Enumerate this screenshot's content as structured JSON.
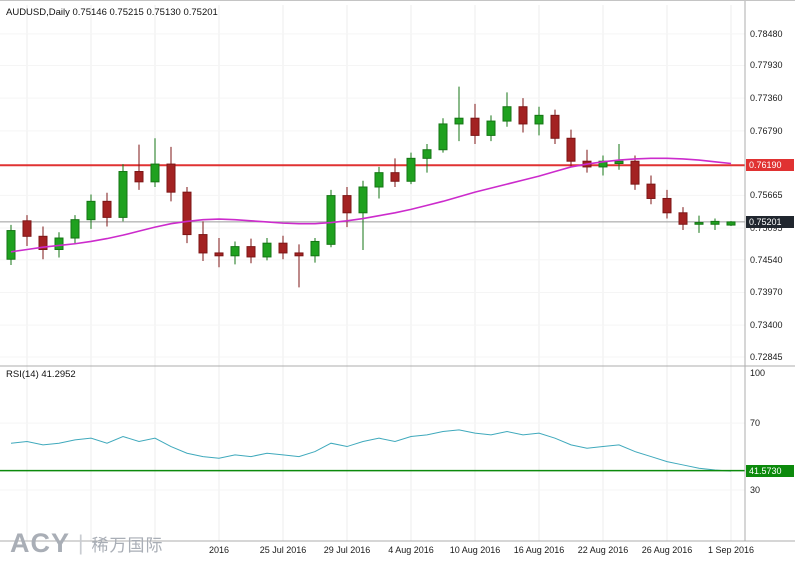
{
  "header": {
    "symbol_line": "AUDUSD,Daily 0.75146 0.75215 0.75130 0.75201"
  },
  "indicator": {
    "label": "RSI(14) 41.2952"
  },
  "logo": {
    "brand": "ACY",
    "separator": "|",
    "cjk": "稀万国际"
  },
  "price_axis": {
    "labels": [
      "0.78480",
      "0.77930",
      "0.77360",
      "0.76790",
      "0.75665",
      "0.75095",
      "0.74540",
      "0.73970",
      "0.73400",
      "0.72845"
    ],
    "red_badge": "0.76190",
    "price_badge": "0.75201",
    "rsi_badge": "41.5730",
    "rsi_labels": [
      "100",
      "70",
      "30"
    ]
  },
  "colors": {
    "bull": "#1fa11f",
    "bull_border": "#157515",
    "bear": "#a32222",
    "bear_border": "#7c1616",
    "ma": "#cc2bcc",
    "rsi": "#3fa9bc",
    "red_line": "#e03232",
    "green_line": "#0c8a0c",
    "badge_dark": "#20262e",
    "grid": "#ececec",
    "grid_h": "#f5f5f5",
    "divider": "#adadad",
    "current_price_line": "#9b9b9b"
  },
  "chart_data": [
    {
      "type": "candlestick",
      "title": "AUDUSD,Daily",
      "dates": [
        "2016-06-30",
        "2016-07-01",
        "2016-07-04",
        "2016-07-05",
        "2016-07-06",
        "2016-07-07",
        "2016-07-08",
        "2016-07-11",
        "2016-07-12",
        "2016-07-13",
        "2016-07-14",
        "2016-07-15",
        "2016-07-18",
        "2016-07-19",
        "2016-07-20",
        "2016-07-21",
        "2016-07-22",
        "2016-07-25",
        "2016-07-26",
        "2016-07-27",
        "2016-07-28",
        "2016-07-29",
        "2016-08-01",
        "2016-08-02",
        "2016-08-03",
        "2016-08-04",
        "2016-08-05",
        "2016-08-08",
        "2016-08-09",
        "2016-08-10",
        "2016-08-11",
        "2016-08-12",
        "2016-08-15",
        "2016-08-16",
        "2016-08-17",
        "2016-08-18",
        "2016-08-19",
        "2016-08-22",
        "2016-08-23",
        "2016-08-24",
        "2016-08-25",
        "2016-08-26",
        "2016-08-29",
        "2016-08-30",
        "2016-08-31",
        "2016-09-01"
      ],
      "ohlc_fields": [
        "open",
        "high",
        "low",
        "close"
      ],
      "ohlc": [
        [
          0.7455,
          0.7515,
          0.7445,
          0.7505
        ],
        [
          0.7522,
          0.7532,
          0.7478,
          0.7495
        ],
        [
          0.7495,
          0.7512,
          0.7455,
          0.7472
        ],
        [
          0.7472,
          0.7502,
          0.7458,
          0.7492
        ],
        [
          0.7492,
          0.7532,
          0.7482,
          0.7524
        ],
        [
          0.7524,
          0.7568,
          0.7508,
          0.7556
        ],
        [
          0.7556,
          0.7571,
          0.7512,
          0.7528
        ],
        [
          0.7528,
          0.7621,
          0.7521,
          0.7608
        ],
        [
          0.7608,
          0.7655,
          0.7576,
          0.759
        ],
        [
          0.759,
          0.7666,
          0.7581,
          0.7621
        ],
        [
          0.7621,
          0.7651,
          0.7556,
          0.7572
        ],
        [
          0.7572,
          0.7581,
          0.7483,
          0.7498
        ],
        [
          0.7498,
          0.7521,
          0.7452,
          0.7466
        ],
        [
          0.7466,
          0.7492,
          0.7441,
          0.7461
        ],
        [
          0.7461,
          0.7486,
          0.7446,
          0.7477
        ],
        [
          0.7477,
          0.7491,
          0.7448,
          0.7459
        ],
        [
          0.7459,
          0.7492,
          0.7453,
          0.7483
        ],
        [
          0.7483,
          0.7496,
          0.7455,
          0.7466
        ],
        [
          0.7466,
          0.7481,
          0.7406,
          0.7461
        ],
        [
          0.7461,
          0.7492,
          0.7449,
          0.7486
        ],
        [
          0.7481,
          0.7576,
          0.7476,
          0.7566
        ],
        [
          0.7566,
          0.7581,
          0.7511,
          0.7536
        ],
        [
          0.7536,
          0.7592,
          0.7471,
          0.7581
        ],
        [
          0.7581,
          0.7616,
          0.7561,
          0.7606
        ],
        [
          0.7606,
          0.7631,
          0.7581,
          0.7591
        ],
        [
          0.7591,
          0.7641,
          0.7586,
          0.7631
        ],
        [
          0.7631,
          0.7656,
          0.7606,
          0.7646
        ],
        [
          0.7646,
          0.7701,
          0.7641,
          0.7691
        ],
        [
          0.7691,
          0.7756,
          0.7661,
          0.7701
        ],
        [
          0.7701,
          0.7726,
          0.7656,
          0.7671
        ],
        [
          0.7671,
          0.7706,
          0.7661,
          0.7696
        ],
        [
          0.7696,
          0.7746,
          0.7686,
          0.7721
        ],
        [
          0.7721,
          0.7736,
          0.7676,
          0.7691
        ],
        [
          0.7691,
          0.7721,
          0.7671,
          0.7706
        ],
        [
          0.7706,
          0.7716,
          0.7656,
          0.7666
        ],
        [
          0.7666,
          0.7681,
          0.7616,
          0.7626
        ],
        [
          0.7626,
          0.7646,
          0.7606,
          0.7616
        ],
        [
          0.7616,
          0.7636,
          0.7601,
          0.7626
        ],
        [
          0.7622,
          0.7656,
          0.7611,
          0.7626
        ],
        [
          0.7626,
          0.7636,
          0.7576,
          0.7586
        ],
        [
          0.7586,
          0.7601,
          0.7551,
          0.7561
        ],
        [
          0.7561,
          0.7576,
          0.7526,
          0.7536
        ],
        [
          0.7536,
          0.7546,
          0.7506,
          0.7516
        ],
        [
          0.7516,
          0.7531,
          0.7501,
          0.7519
        ],
        [
          0.7516,
          0.7526,
          0.7506,
          0.7521
        ],
        [
          0.75146,
          0.75215,
          0.7513,
          0.75201
        ]
      ],
      "ma_overlay": {
        "name": "moving-average",
        "values": [
          0.7468,
          0.7472,
          0.7476,
          0.7479,
          0.7482,
          0.7486,
          0.7491,
          0.7497,
          0.7504,
          0.7511,
          0.7517,
          0.7521,
          0.7524,
          0.7525,
          0.7524,
          0.7522,
          0.752,
          0.7518,
          0.7517,
          0.7517,
          0.7519,
          0.7522,
          0.7526,
          0.7531,
          0.7536,
          0.7542,
          0.7549,
          0.7556,
          0.7564,
          0.7572,
          0.7579,
          0.7586,
          0.7593,
          0.76,
          0.7608,
          0.7616,
          0.7621,
          0.7625,
          0.7628,
          0.763,
          0.7631,
          0.7631,
          0.763,
          0.7628,
          0.7625,
          0.7622
        ]
      },
      "hlines": [
        {
          "name": "resistance",
          "value": 0.7619
        },
        {
          "name": "current-price",
          "value": 0.75201
        }
      ],
      "y_ticks": [
        0.7848,
        0.7793,
        0.7736,
        0.7679,
        0.75665,
        0.75095,
        0.7454,
        0.7397,
        0.734,
        0.72845
      ],
      "ylim": [
        0.7274,
        0.7888
      ],
      "x_tick_indices": [
        1,
        5,
        9,
        13,
        17,
        21,
        25,
        29,
        33,
        37,
        41,
        45
      ],
      "x_tick_labels": [
        "",
        "",
        "",
        "2016",
        "25 Jul 2016",
        "29 Jul 2016",
        "4 Aug 2016",
        "10 Aug 2016",
        "16 Aug 2016",
        "22 Aug 2016",
        "26 Aug 2016",
        "1 Sep 2016"
      ]
    },
    {
      "type": "line",
      "name": "RSI(14)",
      "current_value": 41.2952,
      "values": [
        58,
        59,
        57,
        58,
        60,
        61,
        58,
        62,
        59,
        61,
        56,
        52,
        50,
        49,
        51,
        50,
        52,
        51,
        50,
        53,
        58,
        56,
        59,
        61,
        59,
        62,
        63,
        65,
        66,
        64,
        63,
        65,
        63,
        64,
        61,
        57,
        55,
        56,
        57,
        53,
        50,
        47,
        45,
        43,
        42,
        41.3
      ],
      "hline": {
        "name": "rsi-level",
        "value": 41.573
      },
      "levels": [
        70,
        30
      ],
      "y_ticks": [
        100,
        70,
        30
      ],
      "ylim": [
        30,
        100
      ]
    }
  ]
}
